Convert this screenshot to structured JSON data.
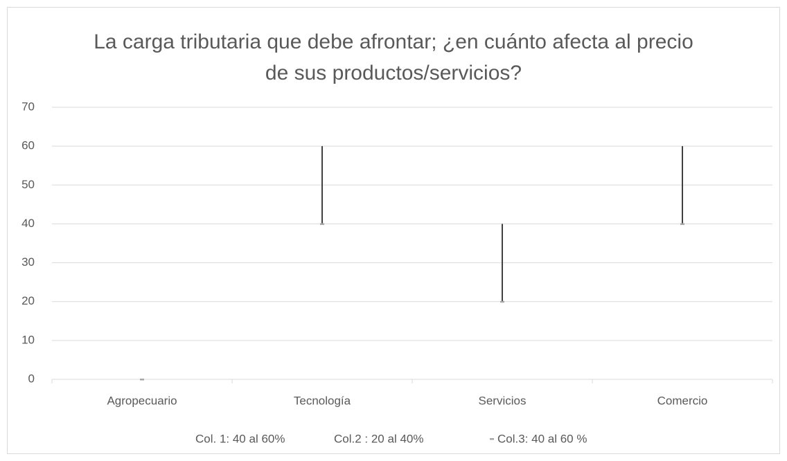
{
  "chart_data": {
    "type": "hilo",
    "title": "La carga tributaria que debe afrontar; ¿en cuánto afecta al precio de sus productos/servicios?",
    "categories": [
      "Agropecuario",
      "Tecnología",
      "Servicios",
      "Comercio"
    ],
    "series": [
      {
        "name": "Col. 1: 40 al 60%",
        "values": [
          0,
          60,
          40,
          60
        ]
      },
      {
        "name": "Col.2 : 20 al 40%",
        "values": [
          0,
          40,
          20,
          40
        ]
      },
      {
        "name": "Col.3: 40 al 60 %",
        "color": "#a5a5a5",
        "values": [
          0,
          40,
          20,
          40
        ]
      }
    ],
    "hilo_color": "#404040",
    "ylim": [
      0,
      70
    ],
    "yticks": [
      0,
      10,
      20,
      30,
      40,
      50,
      60,
      70
    ],
    "grid": true,
    "legend": "bottom"
  }
}
